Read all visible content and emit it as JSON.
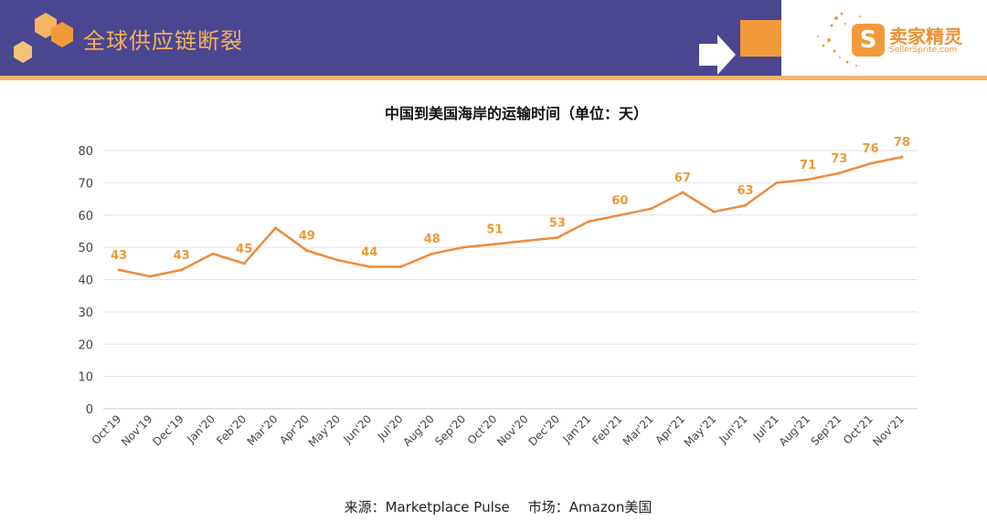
{
  "header": {
    "title": "全球供应链断裂",
    "logo_icon": "S",
    "logo_name": "卖家精灵",
    "logo_sub": "SellerSprite.com"
  },
  "colors": {
    "header_bg": "#4a4790",
    "accent": "#f19a3a",
    "line": "#ee8a3c",
    "label": "#eb9a35"
  },
  "chart_data": {
    "type": "line",
    "title": "中国到美国海岸的运输时间（单位：天）",
    "categories": [
      "Oct'19",
      "Nov'19",
      "Dec'19",
      "Jan'20",
      "Feb'20",
      "Mar'20",
      "Apr'20",
      "May'20",
      "Jun'20",
      "Jul'20",
      "Aug'20",
      "Sep'20",
      "Oct'20",
      "Nov'20",
      "Dec'20",
      "Jan'21",
      "Feb'21",
      "Mar'21",
      "Apr'21",
      "May'21",
      "Jun'21",
      "Jul'21",
      "Aug'21",
      "Sep'21",
      "Oct'21",
      "Nov'21"
    ],
    "values": [
      43,
      41,
      43,
      48,
      45,
      56,
      49,
      46,
      44,
      44,
      48,
      50,
      51,
      52,
      53,
      58,
      60,
      62,
      67,
      61,
      63,
      70,
      71,
      73,
      76,
      78
    ],
    "data_labels": [
      43,
      null,
      43,
      null,
      45,
      null,
      49,
      null,
      44,
      null,
      48,
      null,
      51,
      null,
      53,
      null,
      60,
      null,
      67,
      null,
      63,
      null,
      71,
      73,
      76,
      78
    ],
    "yticks": [
      0,
      10,
      20,
      30,
      40,
      50,
      60,
      70,
      80
    ],
    "ylim": [
      0,
      80
    ],
    "grid": true,
    "legend": "none"
  },
  "footer": {
    "source": "来源：Marketplace Pulse",
    "market": "市场：Amazon美国"
  }
}
